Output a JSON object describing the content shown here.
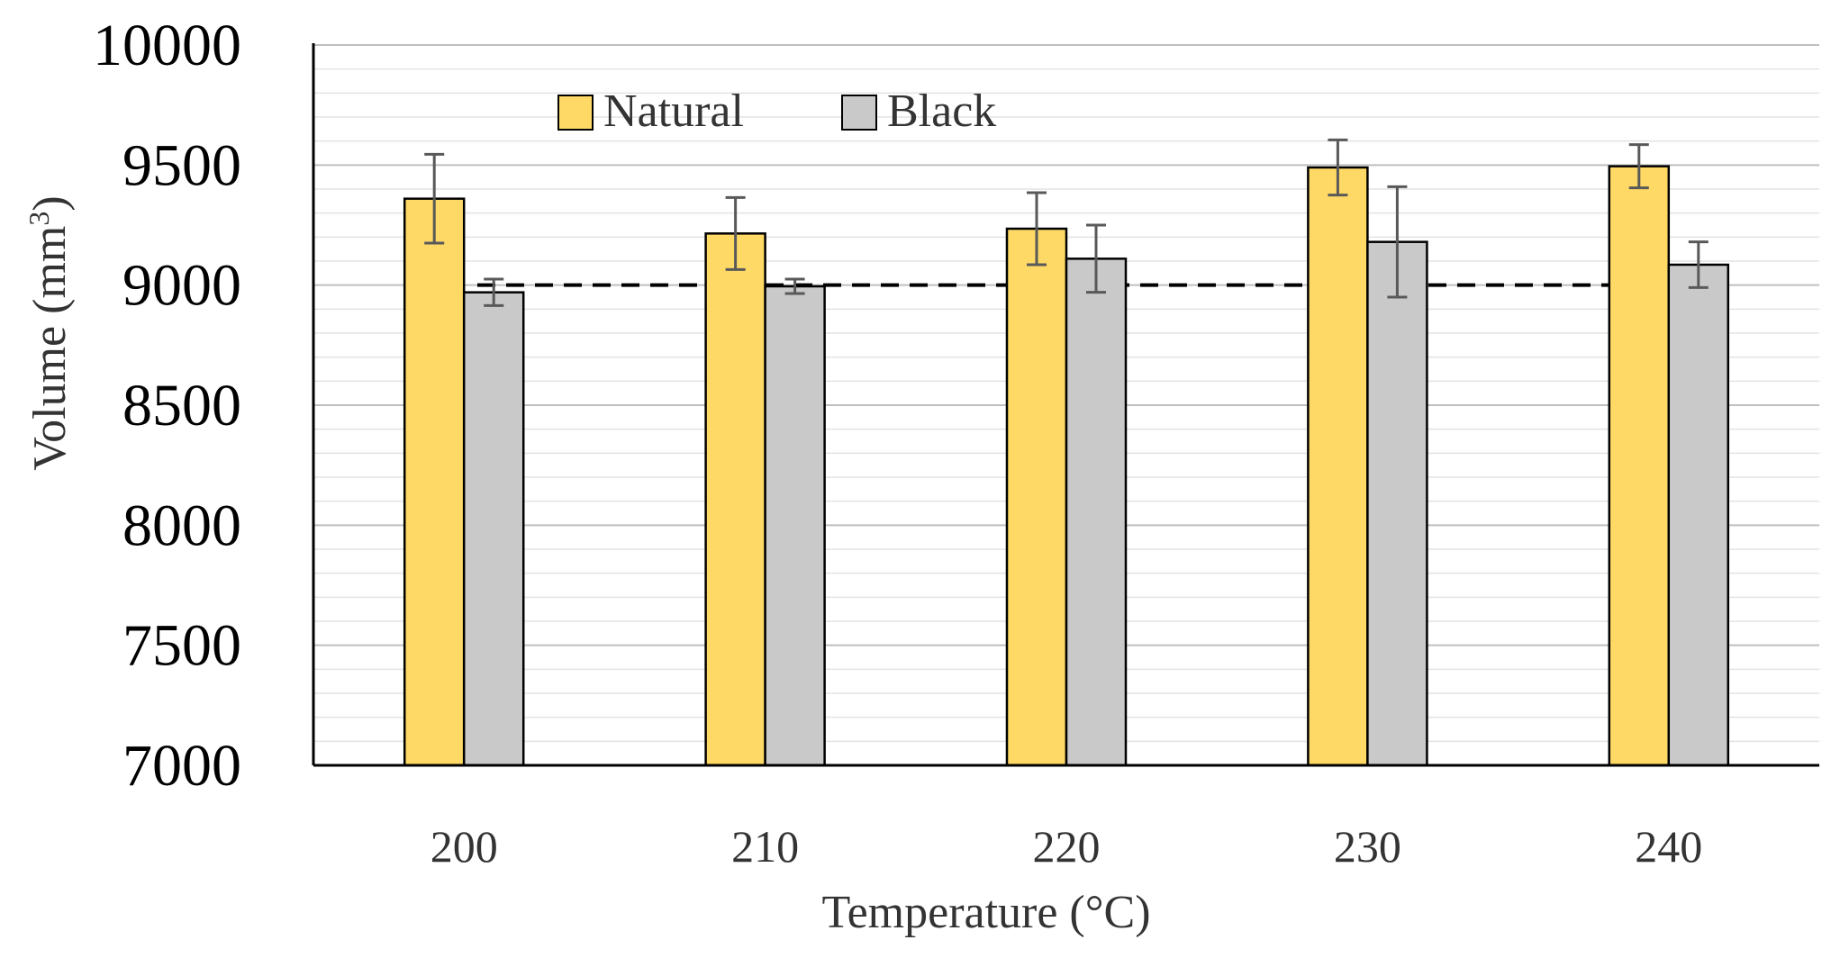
{
  "chart_data": {
    "type": "bar",
    "title": "",
    "xlabel": "Temperature (°C)",
    "ylabel": "Volume (mm³)",
    "ylabel_base": "Volume (mm",
    "ylabel_sup": "3",
    "ylabel_close": ")",
    "categories": [
      "200",
      "210",
      "220",
      "230",
      "240"
    ],
    "ylim": [
      7000,
      10000
    ],
    "yticks": [
      7000,
      7500,
      8000,
      8500,
      9000,
      9500,
      10000
    ],
    "ytick_labels": [
      "7000",
      "7500",
      "8000",
      "8500",
      "9000",
      "9500",
      "10000"
    ],
    "minor_grid_step": 100,
    "reference_line": 9000,
    "legend_position": "top-center",
    "series": [
      {
        "name": "Natural",
        "color": "#FFD966",
        "values": [
          9360,
          9215,
          9235,
          9490,
          9495
        ],
        "errors": [
          185,
          150,
          150,
          115,
          90
        ]
      },
      {
        "name": "Black",
        "color": "#C9C9C9",
        "values": [
          8970,
          8995,
          9110,
          9180,
          9085
        ],
        "errors": [
          55,
          30,
          140,
          230,
          95
        ]
      }
    ]
  }
}
